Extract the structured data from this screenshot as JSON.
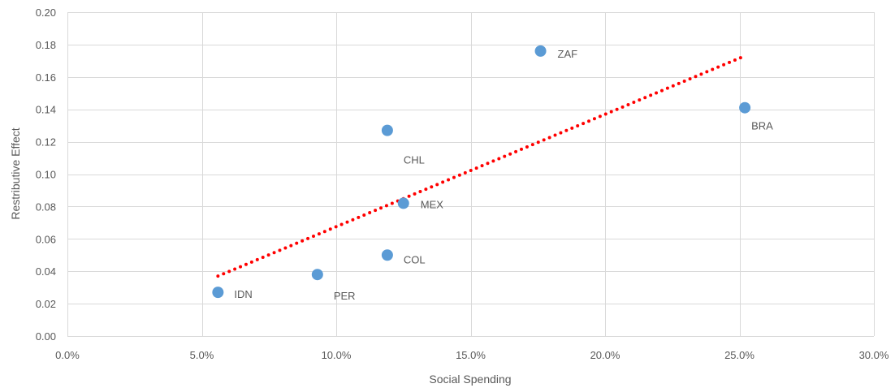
{
  "chart_data": {
    "type": "scatter",
    "title": "",
    "xlabel": "Social Spending",
    "ylabel": "Restributive Effect",
    "xlim": [
      0,
      0.3
    ],
    "ylim": [
      0,
      0.2
    ],
    "x_ticks": [
      0,
      0.05,
      0.1,
      0.15,
      0.2,
      0.25,
      0.3
    ],
    "x_tick_labels": [
      "0.0%",
      "5.0%",
      "10.0%",
      "15.0%",
      "20.0%",
      "25.0%",
      "30.0%"
    ],
    "y_ticks": [
      0,
      0.02,
      0.04,
      0.06,
      0.08,
      0.1,
      0.12,
      0.14,
      0.16,
      0.18,
      0.2
    ],
    "y_tick_labels": [
      "0.00",
      "0.02",
      "0.04",
      "0.06",
      "0.08",
      "0.10",
      "0.12",
      "0.14",
      "0.16",
      "0.18",
      "0.20"
    ],
    "grid": true,
    "points": [
      {
        "label": "IDN",
        "x": 0.056,
        "y": 0.027
      },
      {
        "label": "PER",
        "x": 0.093,
        "y": 0.038
      },
      {
        "label": "COL",
        "x": 0.119,
        "y": 0.05
      },
      {
        "label": "CHL",
        "x": 0.119,
        "y": 0.127
      },
      {
        "label": "MEX",
        "x": 0.125,
        "y": 0.082
      },
      {
        "label": "ZAF",
        "x": 0.176,
        "y": 0.176
      },
      {
        "label": "BRA",
        "x": 0.252,
        "y": 0.141
      }
    ],
    "trendline": {
      "type": "linear",
      "x": [
        0.056,
        0.252
      ],
      "y": [
        0.037,
        0.173
      ]
    },
    "colors": {
      "points": "#5b9bd5",
      "trendline": "#ff0000",
      "grid": "#d9d9d9",
      "text": "#595959"
    }
  }
}
